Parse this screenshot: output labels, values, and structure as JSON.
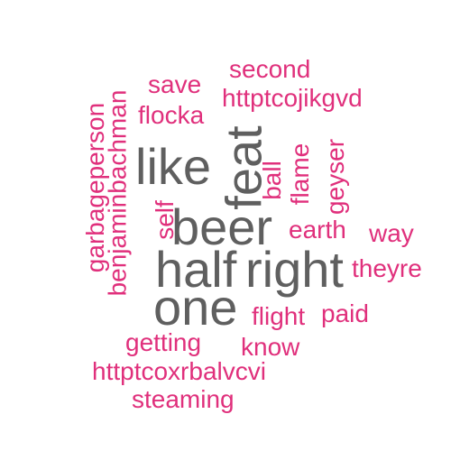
{
  "wordcloud": {
    "colors": {
      "primary": "#5f5f5f",
      "secondary": "#e0307c"
    },
    "words": {
      "beer": "beer",
      "half": "half",
      "right": "right",
      "one": "one",
      "like": "like",
      "feat": "feat",
      "second": "second",
      "save": "save",
      "httptcojikgvd": "httptcojikgvd",
      "flocka": "flocka",
      "garbageperson": "garbageperson",
      "benjaminbachman": "benjaminbachman",
      "self": "self",
      "ball": "ball",
      "flame": "flame",
      "geyser": "geyser",
      "earth": "earth",
      "way": "way",
      "theyre": "theyre",
      "flight": "flight",
      "paid": "paid",
      "getting": "getting",
      "know": "know",
      "httptcoxrbalvcvi": "httptcoxrbalvcvi",
      "steaming": "steaming"
    }
  }
}
